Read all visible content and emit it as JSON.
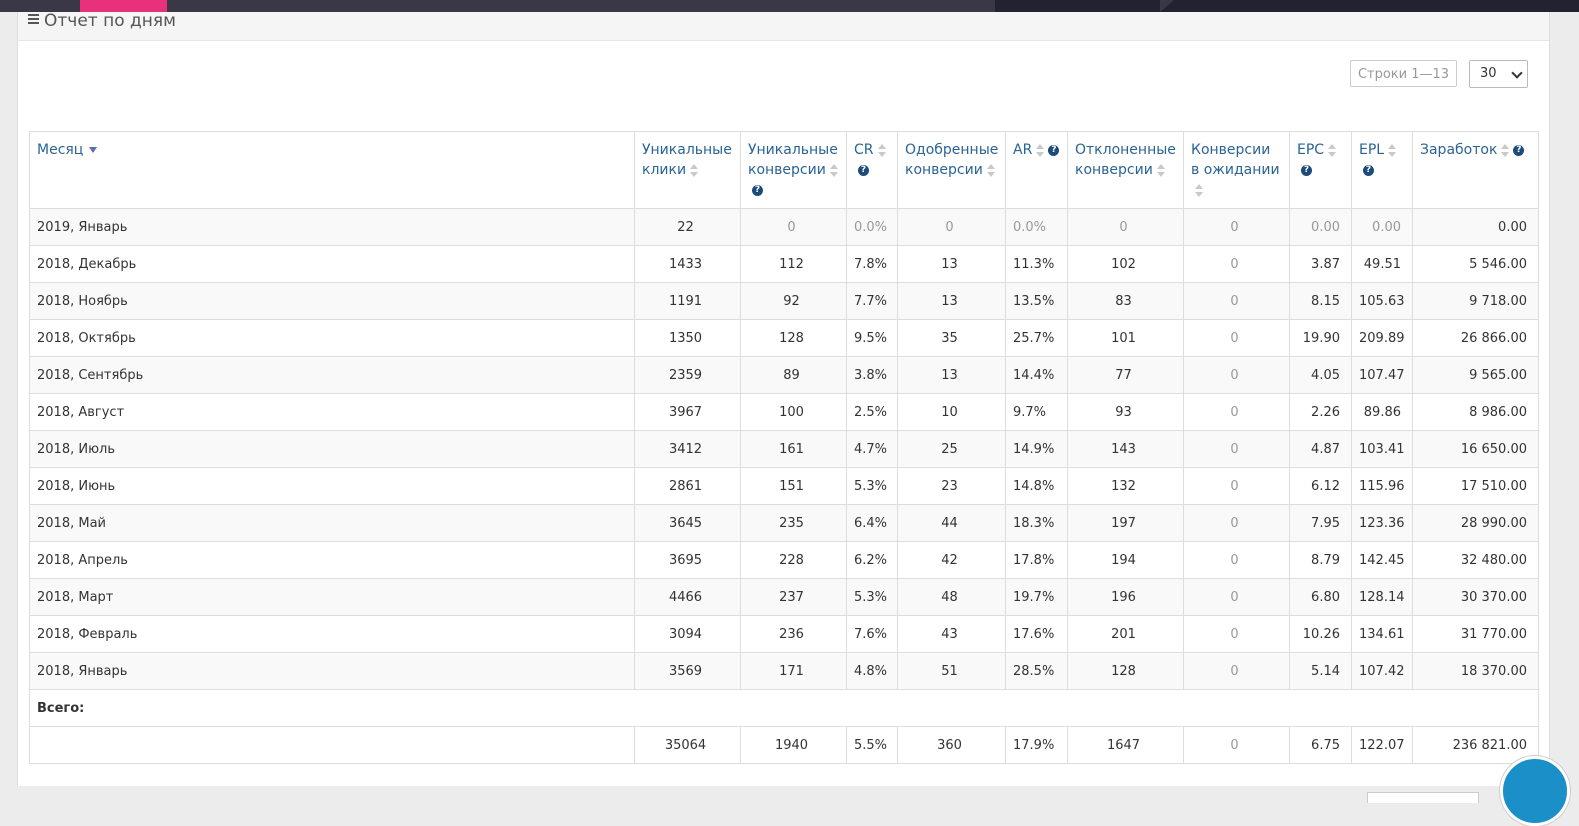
{
  "panel": {
    "title": "Отчет по дням"
  },
  "pagination": {
    "rows_info": "Строки 1—13",
    "per_page": "30"
  },
  "columns": [
    {
      "label": "Месяц",
      "sort": "desc",
      "help": false
    },
    {
      "label": "Уникальные клики",
      "sort": "both",
      "help": false
    },
    {
      "label": "Уникальные конверсии",
      "sort": "both",
      "help": true
    },
    {
      "label": "CR",
      "sort": "both",
      "help": true
    },
    {
      "label": "Одобренные конверсии",
      "sort": "both",
      "help": false
    },
    {
      "label": "AR",
      "sort": "both",
      "help": true
    },
    {
      "label": "Отклоненные конверсии",
      "sort": "both",
      "help": false
    },
    {
      "label": "Конверсии в ожидании",
      "sort": "both",
      "help": false
    },
    {
      "label": "EPC",
      "sort": "both",
      "help": true
    },
    {
      "label": "EPL",
      "sort": "both",
      "help": true
    },
    {
      "label": "Заработок",
      "sort": "both",
      "help": true
    }
  ],
  "rows": [
    [
      "2019, Январь",
      "22",
      "0",
      "0.0%",
      "0",
      "0.0%",
      "0",
      "0",
      "0.00",
      "0.00",
      "0.00"
    ],
    [
      "2018, Декабрь",
      "1433",
      "112",
      "7.8%",
      "13",
      "11.3%",
      "102",
      "0",
      "3.87",
      "49.51",
      "5 546.00"
    ],
    [
      "2018, Ноябрь",
      "1191",
      "92",
      "7.7%",
      "13",
      "13.5%",
      "83",
      "0",
      "8.15",
      "105.63",
      "9 718.00"
    ],
    [
      "2018, Октябрь",
      "1350",
      "128",
      "9.5%",
      "35",
      "25.7%",
      "101",
      "0",
      "19.90",
      "209.89",
      "26 866.00"
    ],
    [
      "2018, Сентябрь",
      "2359",
      "89",
      "3.8%",
      "13",
      "14.4%",
      "77",
      "0",
      "4.05",
      "107.47",
      "9 565.00"
    ],
    [
      "2018, Август",
      "3967",
      "100",
      "2.5%",
      "10",
      "9.7%",
      "93",
      "0",
      "2.26",
      "89.86",
      "8 986.00"
    ],
    [
      "2018, Июль",
      "3412",
      "161",
      "4.7%",
      "25",
      "14.9%",
      "143",
      "0",
      "4.87",
      "103.41",
      "16 650.00"
    ],
    [
      "2018, Июнь",
      "2861",
      "151",
      "5.3%",
      "23",
      "14.8%",
      "132",
      "0",
      "6.12",
      "115.96",
      "17 510.00"
    ],
    [
      "2018, Май",
      "3645",
      "235",
      "6.4%",
      "44",
      "18.3%",
      "197",
      "0",
      "7.95",
      "123.36",
      "28 990.00"
    ],
    [
      "2018, Апрель",
      "3695",
      "228",
      "6.2%",
      "42",
      "17.8%",
      "194",
      "0",
      "8.79",
      "142.45",
      "32 480.00"
    ],
    [
      "2018, Март",
      "4466",
      "237",
      "5.3%",
      "48",
      "19.7%",
      "196",
      "0",
      "6.80",
      "128.14",
      "30 370.00"
    ],
    [
      "2018, Февраль",
      "3094",
      "236",
      "7.6%",
      "43",
      "17.6%",
      "201",
      "0",
      "10.26",
      "134.61",
      "31 770.00"
    ],
    [
      "2018, Январь",
      "3569",
      "171",
      "4.8%",
      "51",
      "28.5%",
      "128",
      "0",
      "5.14",
      "107.42",
      "18 370.00"
    ]
  ],
  "totals": {
    "label": "Всего:",
    "values": [
      "",
      "35064",
      "1940",
      "5.5%",
      "360",
      "17.9%",
      "1647",
      "0",
      "6.75",
      "122.07",
      "236 821.00"
    ]
  }
}
